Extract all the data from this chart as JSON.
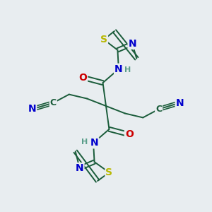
{
  "bg_color": "#e8edf0",
  "bond_color": "#1a5c3a",
  "atom_colors": {
    "C": "#1a5c3a",
    "N": "#0000cc",
    "O": "#cc0000",
    "S": "#b8b800",
    "H": "#5a9e8a"
  },
  "figsize": [
    3.0,
    3.0
  ],
  "dpi": 100
}
